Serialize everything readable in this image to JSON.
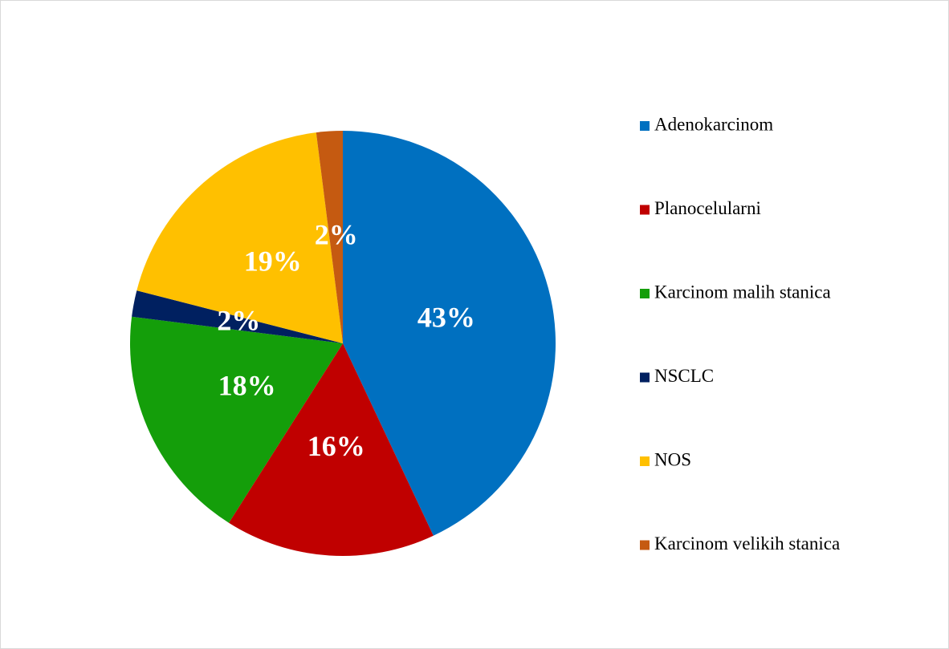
{
  "chart_data": {
    "type": "pie",
    "categories": [
      "Adenokarcinom",
      "Planocelularni",
      "Karcinom malih stanica",
      "NSCLC",
      "NOS",
      "Karcinom velikih stanica"
    ],
    "values": [
      43,
      16,
      18,
      2,
      19,
      2
    ],
    "value_labels": [
      "43%",
      "16%",
      "18%",
      "2%",
      "19%",
      "2%"
    ],
    "colors": [
      "#0070c0",
      "#c00000",
      "#149e0a",
      "#002060",
      "#ffc000",
      "#c55a11"
    ],
    "legend": "right"
  }
}
